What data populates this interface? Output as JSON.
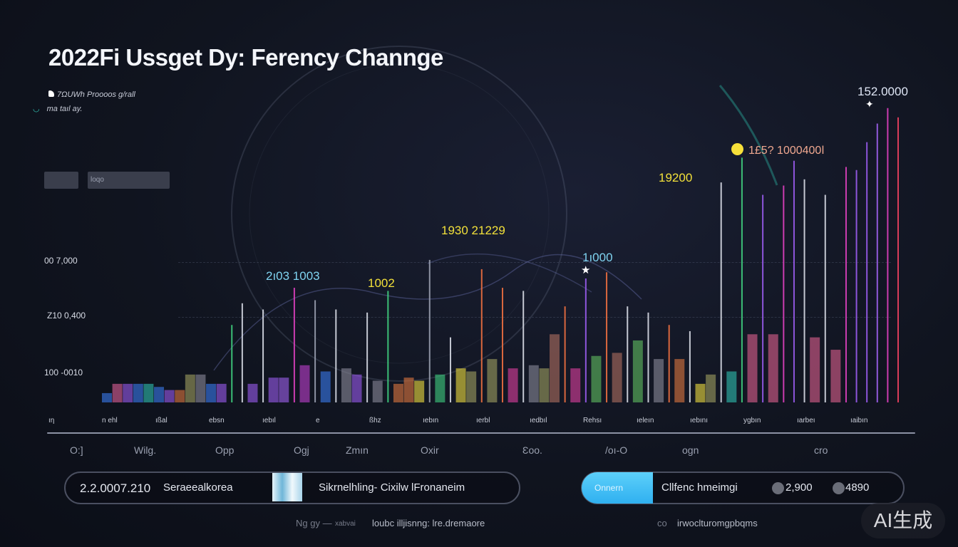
{
  "title": "2022Fi Ussget Dy: Ferency Channge",
  "legend": {
    "line1": "7ΩUWh Proooos g/rall",
    "line2": "ma taıl ay."
  },
  "filter_box": {
    "value": "loqo"
  },
  "colors": {
    "background": "#0e1220",
    "accent_cyan": "#4cc3f5",
    "annotation_yellow": "#f2e03a",
    "annotation_cyan": "#7fd3f0"
  },
  "chart_data": {
    "type": "bar",
    "title": "2022Fi Ussget Dy: Ferency Channge",
    "ylim": [
      0,
      100
    ],
    "grid": true,
    "y_tick_labels": [
      "100 -0010",
      "Z10 0,400",
      "00 7,000"
    ],
    "x_tick_labels": [
      "O:]",
      "Wilg.",
      "Opp",
      "Ogj",
      "Zmın",
      "Oxir",
      "Ɛoo.",
      "/oı-O",
      "ogn",
      "cro"
    ],
    "x_minor_labels": [
      "ıη",
      "n ehl",
      "ıßal",
      "ebsn",
      "ıebıl",
      "e",
      "ßhz",
      "ıebın",
      "ıerbl",
      "ıedbıl",
      "Rehsı",
      "ıeleın",
      "ıebını",
      "ygbın",
      "ıarbeı",
      "ıaibın"
    ],
    "annotations": [
      "2ı03 1003",
      "1002",
      "1930 21229",
      "1ı000",
      "19200",
      "1£5? 1000400ǀ",
      "152.0000"
    ],
    "bars": [
      {
        "v": 3,
        "c": "#3b7bf0",
        "s": "bar"
      },
      {
        "v": 6,
        "c": "#e0609a",
        "s": "bar"
      },
      {
        "v": 6,
        "c": "#9b5cf0",
        "s": "bar"
      },
      {
        "v": 6,
        "c": "#3b7bf0",
        "s": "bar"
      },
      {
        "v": 6,
        "c": "#2fc0b0",
        "s": "bar"
      },
      {
        "v": 5,
        "c": "#3b7bf0",
        "s": "bar"
      },
      {
        "v": 4,
        "c": "#9b5cf0",
        "s": "bar"
      },
      {
        "v": 4,
        "c": "#e07840",
        "s": "bar"
      },
      {
        "v": 9,
        "c": "#a0a060",
        "s": "bar"
      },
      {
        "v": 9,
        "c": "#8a8a9a",
        "s": "bar"
      },
      {
        "v": 6,
        "c": "#3b7bf0",
        "s": "bar"
      },
      {
        "v": 6,
        "c": "#9b5cf0",
        "s": "bar"
      },
      {
        "v": 25,
        "c": "#40d080",
        "s": "line"
      },
      {
        "v": 32,
        "c": "#d8dce6",
        "s": "line"
      },
      {
        "v": 6,
        "c": "#9b5cf0",
        "s": "bar"
      },
      {
        "v": 30,
        "c": "#d8dce6",
        "s": "line"
      },
      {
        "v": 8,
        "c": "#9b5cf0",
        "s": "bar"
      },
      {
        "v": 8,
        "c": "#a060f0",
        "s": "bar"
      },
      {
        "v": 37,
        "c": "#e040c0",
        "s": "line"
      },
      {
        "v": 12,
        "c": "#c040d0",
        "s": "bar"
      },
      {
        "v": 33,
        "c": "#9aa0b0",
        "s": "line"
      },
      {
        "v": 10,
        "c": "#3b7bf0",
        "s": "bar"
      },
      {
        "v": 30,
        "c": "#d8dce6",
        "s": "line"
      },
      {
        "v": 11,
        "c": "#8a8a9a",
        "s": "bar"
      },
      {
        "v": 9,
        "c": "#9b5cf0",
        "s": "bar"
      },
      {
        "v": 29,
        "c": "#d8dce6",
        "s": "line"
      },
      {
        "v": 7,
        "c": "#8a8a9a",
        "s": "bar"
      },
      {
        "v": 36,
        "c": "#40d080",
        "s": "line"
      },
      {
        "v": 6,
        "c": "#e07840",
        "s": "bar"
      },
      {
        "v": 8,
        "c": "#e07840",
        "s": "bar"
      },
      {
        "v": 7,
        "c": "#f0e040",
        "s": "bar"
      },
      {
        "v": 46,
        "c": "#9aa0b0",
        "s": "line"
      },
      {
        "v": 9,
        "c": "#40d080",
        "s": "bar"
      },
      {
        "v": 21,
        "c": "#d8dce6",
        "s": "line"
      },
      {
        "v": 11,
        "c": "#f0e040",
        "s": "bar"
      },
      {
        "v": 10,
        "c": "#a0a060",
        "s": "bar"
      },
      {
        "v": 43,
        "c": "#f07040",
        "s": "line"
      },
      {
        "v": 14,
        "c": "#a0a060",
        "s": "bar"
      },
      {
        "v": 37,
        "c": "#f07040",
        "s": "line"
      },
      {
        "v": 11,
        "c": "#e040a0",
        "s": "bar"
      },
      {
        "v": 36,
        "c": "#d8dce6",
        "s": "line"
      },
      {
        "v": 12,
        "c": "#8a8a9a",
        "s": "bar"
      },
      {
        "v": 11,
        "c": "#a0a060",
        "s": "bar"
      },
      {
        "v": 22,
        "c": "#b07060",
        "s": "bar"
      },
      {
        "v": 31,
        "c": "#f07040",
        "s": "line"
      },
      {
        "v": 11,
        "c": "#e040a0",
        "s": "bar"
      },
      {
        "v": 40,
        "c": "#9b5cf0",
        "s": "line"
      },
      {
        "v": 15,
        "c": "#60c060",
        "s": "bar"
      },
      {
        "v": 42,
        "c": "#f07040",
        "s": "line"
      },
      {
        "v": 16,
        "c": "#b07060",
        "s": "bar"
      },
      {
        "v": 31,
        "c": "#d8dce6",
        "s": "line"
      },
      {
        "v": 20,
        "c": "#60c060",
        "s": "bar"
      },
      {
        "v": 29,
        "c": "#d8dce6",
        "s": "line"
      },
      {
        "v": 14,
        "c": "#8a8a9a",
        "s": "bar"
      },
      {
        "v": 25,
        "c": "#f07040",
        "s": "line"
      },
      {
        "v": 14,
        "c": "#e07840",
        "s": "bar"
      },
      {
        "v": 23,
        "c": "#d8dce6",
        "s": "line"
      },
      {
        "v": 6,
        "c": "#f0e040",
        "s": "bar"
      },
      {
        "v": 9,
        "c": "#a0a060",
        "s": "bar"
      },
      {
        "v": 71,
        "c": "#d8dce6",
        "s": "line"
      },
      {
        "v": 10,
        "c": "#2fc0b0",
        "s": "bar"
      },
      {
        "v": 79,
        "c": "#40d080",
        "s": "line"
      },
      {
        "v": 22,
        "c": "#e06090",
        "s": "bar"
      },
      {
        "v": 67,
        "c": "#9b5cf0",
        "s": "line"
      },
      {
        "v": 22,
        "c": "#e06090",
        "s": "bar"
      },
      {
        "v": 70,
        "c": "#e040c0",
        "s": "line"
      },
      {
        "v": 78,
        "c": "#9b5cf0",
        "s": "line"
      },
      {
        "v": 72,
        "c": "#d8dce6",
        "s": "line"
      },
      {
        "v": 21,
        "c": "#e06090",
        "s": "bar"
      },
      {
        "v": 67,
        "c": "#d8dce6",
        "s": "line"
      },
      {
        "v": 17,
        "c": "#e06090",
        "s": "bar"
      },
      {
        "v": 76,
        "c": "#e040c0",
        "s": "line"
      },
      {
        "v": 75,
        "c": "#9b5cf0",
        "s": "line"
      },
      {
        "v": 84,
        "c": "#9b5cf0",
        "s": "line"
      },
      {
        "v": 90,
        "c": "#a060f0",
        "s": "line"
      },
      {
        "v": 95,
        "c": "#e040c0",
        "s": "line"
      },
      {
        "v": 92,
        "c": "#f04060",
        "s": "line"
      }
    ]
  },
  "bottom_left": {
    "value": "2.2.0007.210",
    "label": "Seraeealkorea",
    "text": "Sikrnelhling- Cixilw lFronaneim",
    "caption_a": "Ng gy —",
    "caption_b": "xabvai",
    "caption_c": "loubc illjisnng: lre.dremaore"
  },
  "bottom_right": {
    "button": "Onnern",
    "label": "Cllfenc hmeimgi",
    "value_a": "2,900",
    "value_b": "4890",
    "caption_a": "co",
    "caption_b": "irwoclturomgpbqms"
  },
  "watermark": "AI生成"
}
